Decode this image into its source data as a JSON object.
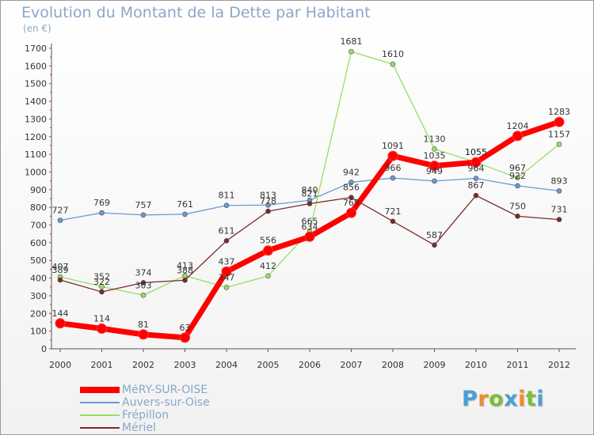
{
  "chart_data": {
    "type": "line",
    "title": "Evolution du Montant de la Dette par Habitant",
    "unit_label": "(en €)",
    "x": [
      "2000",
      "2001",
      "2002",
      "2003",
      "2004",
      "2005",
      "2006",
      "2007",
      "2008",
      "2009",
      "2010",
      "2011",
      "2012"
    ],
    "ylim": [
      0,
      1700
    ],
    "yticks": [
      "0",
      "100",
      "200",
      "300",
      "400",
      "500",
      "600",
      "700",
      "800",
      "900",
      "1000",
      "1100",
      "1200",
      "1300",
      "1400",
      "1500",
      "1600",
      "1700"
    ],
    "grid": false,
    "legend_position": "bottom-left",
    "series": [
      {
        "name": "MéRY-SUR-OISE",
        "color": "#ff0000",
        "values": [
          144,
          114,
          81,
          63,
          437,
          556,
          634,
          769,
          1091,
          1035,
          1055,
          1204,
          1283
        ],
        "labels": [
          "144",
          "114",
          "81",
          "63",
          "437",
          "556",
          "634",
          "769",
          "1091",
          "1035",
          "1055",
          "1204",
          "1283"
        ]
      },
      {
        "name": "Auvers-sur-Oise",
        "color": "#6a9bcf",
        "values": [
          727,
          769,
          757,
          761,
          811,
          813,
          840,
          942,
          966,
          949,
          964,
          922,
          893
        ],
        "labels": [
          "727",
          "769",
          "757",
          "761",
          "811",
          "813",
          "840",
          "942",
          "966",
          "949",
          "964",
          "922",
          "893"
        ]
      },
      {
        "name": "Frépillon",
        "color": "#99dd66",
        "values": [
          407,
          352,
          303,
          413,
          347,
          412,
          665,
          1681,
          1610,
          1130,
          1055,
          967,
          1157
        ],
        "labels": [
          "407",
          "352",
          "303",
          "413",
          "347",
          "412",
          "665",
          "1681",
          "1610",
          "1130",
          "1055",
          "967",
          "1157"
        ]
      },
      {
        "name": "Mériel",
        "color": "#7a2a2a",
        "values": [
          389,
          322,
          374,
          388,
          611,
          778,
          821,
          856,
          721,
          587,
          867,
          750,
          731
        ],
        "labels": [
          "389",
          "322",
          "374",
          "388",
          "611",
          "778",
          "821",
          "856",
          "721",
          "587",
          "867",
          "750",
          "731"
        ]
      }
    ]
  },
  "brand": {
    "letters": [
      "P",
      "r",
      "o",
      "x",
      "i",
      "t",
      "i"
    ],
    "colors": [
      "#4a9fd8",
      "#f08c2a",
      "#79bf3a",
      "#4a9fd8",
      "#f08c2a",
      "#79bf3a",
      "#4a9fd8"
    ]
  }
}
